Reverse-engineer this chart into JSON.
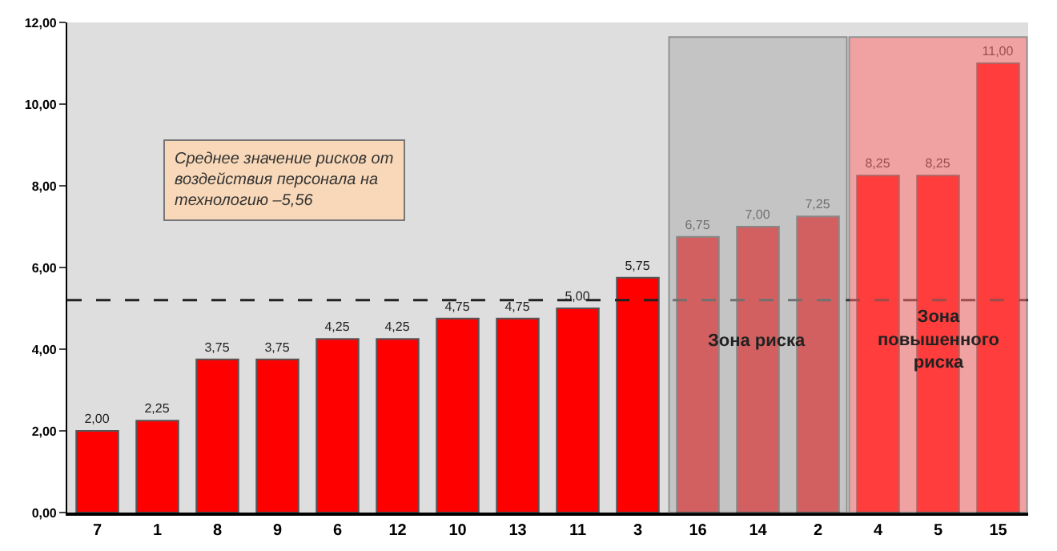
{
  "chart_data": {
    "type": "bar",
    "categories": [
      "7",
      "1",
      "8",
      "9",
      "6",
      "12",
      "10",
      "13",
      "11",
      "3",
      "16",
      "14",
      "2",
      "4",
      "5",
      "15"
    ],
    "values": [
      2,
      2.25,
      3.75,
      3.75,
      4.25,
      4.25,
      4.75,
      4.75,
      5,
      5.75,
      6.75,
      7,
      7.25,
      8.25,
      8.25,
      11
    ],
    "value_labels": [
      "2,00",
      "2,25",
      "3,75",
      "3,75",
      "4,25",
      "4,25",
      "4,75",
      "4,75",
      "5,00",
      "5,75",
      "6,75",
      "7,00",
      "7,25",
      "8,25",
      "8,25",
      "11,00"
    ],
    "color": "#ff0000",
    "ylim": [
      0,
      12
    ],
    "yticks": [
      {
        "value": 0,
        "label": "0,00"
      },
      {
        "value": 2,
        "label": "2,00"
      },
      {
        "value": 4,
        "label": "4,00"
      },
      {
        "value": 6,
        "label": "6,00"
      },
      {
        "value": 8,
        "label": "8,00"
      },
      {
        "value": 10,
        "label": "10,00"
      },
      {
        "value": 12,
        "label": "12,00"
      }
    ],
    "ref_lines": [
      {
        "axis": "y",
        "value": 5.2,
        "color": "#222222",
        "line_style": "dashed"
      }
    ],
    "bands": [
      {
        "axis": "x",
        "from": "16",
        "to": "2",
        "label": "Зона риска",
        "color": "#b0b0b0"
      },
      {
        "axis": "x",
        "from": "4",
        "to": "15",
        "label": "Зона повышенного риска",
        "color": "#ff7070"
      }
    ],
    "annotations": [
      "Среднее значение рисков от воздействия персонала на технологию –5,56"
    ],
    "grid": false,
    "legend": false
  }
}
